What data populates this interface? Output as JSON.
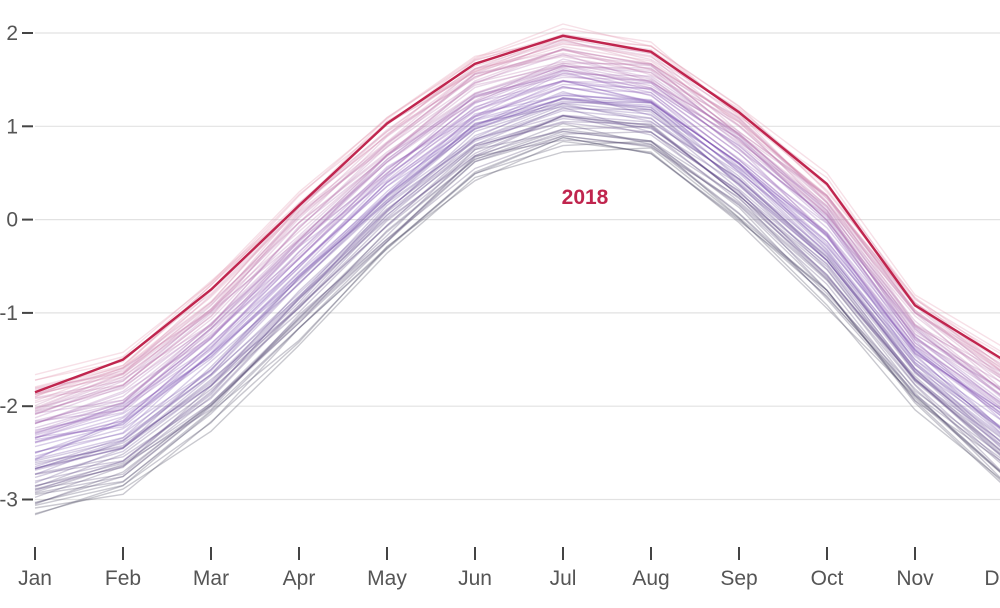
{
  "chart_data": {
    "type": "line",
    "title": "",
    "xlabel": "",
    "ylabel": "",
    "categories": [
      "Jan",
      "Feb",
      "Mar",
      "Apr",
      "May",
      "Jun",
      "Jul",
      "Aug",
      "Sep",
      "Oct",
      "Nov",
      "Dec"
    ],
    "y_ticks": [
      "2",
      "1",
      "0",
      "-1",
      "-2",
      "-3"
    ],
    "ylim": [
      -3.4,
      2.2
    ],
    "grid": true,
    "legend": "none",
    "highlight": {
      "name": "2018",
      "color": "#c0254e",
      "values": [
        -1.85,
        -1.5,
        -0.75,
        0.15,
        1.03,
        1.67,
        1.97,
        1.8,
        1.15,
        0.38,
        -0.92,
        -1.5
      ]
    },
    "background_series": {
      "description_colors": [
        "#3d3d52",
        "#7a4fb5",
        "#e48fa8"
      ],
      "count": 90,
      "values_lowest": [
        -3.15,
        -2.9,
        -2.2,
        -1.3,
        -0.35,
        0.45,
        0.8,
        0.7,
        0.0,
        -0.9,
        -2.0,
        -2.85
      ],
      "values_highest": [
        -1.75,
        -1.45,
        -0.7,
        0.25,
        1.05,
        1.72,
        2.02,
        1.85,
        1.2,
        0.42,
        -0.85,
        -1.45
      ]
    }
  }
}
